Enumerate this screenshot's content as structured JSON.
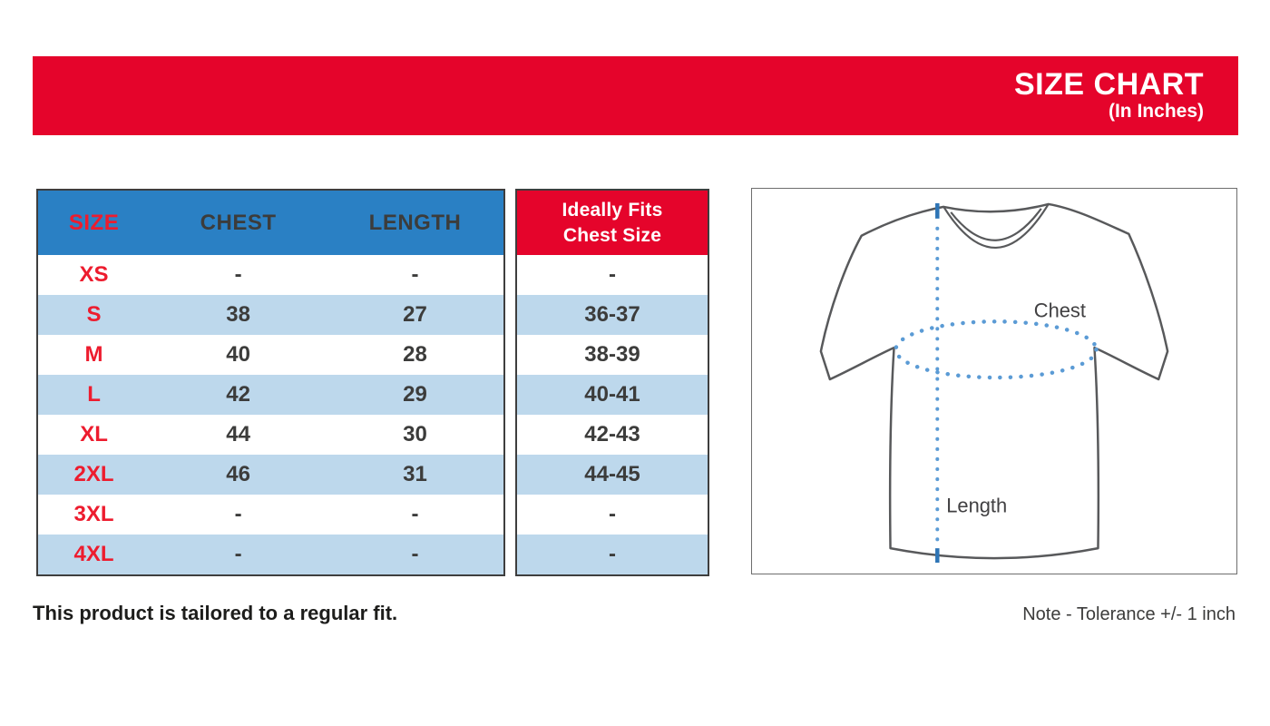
{
  "banner": {
    "title": "SIZE CHART",
    "subtitle": "(In Inches)"
  },
  "size_table": {
    "headers": [
      "SIZE",
      "CHEST",
      "LENGTH"
    ],
    "rows": [
      {
        "size": "XS",
        "chest": "-",
        "length": "-"
      },
      {
        "size": "S",
        "chest": "38",
        "length": "27"
      },
      {
        "size": "M",
        "chest": "40",
        "length": "28"
      },
      {
        "size": "L",
        "chest": "42",
        "length": "29"
      },
      {
        "size": "XL",
        "chest": "44",
        "length": "30"
      },
      {
        "size": "2XL",
        "chest": "46",
        "length": "31"
      },
      {
        "size": "3XL",
        "chest": "-",
        "length": "-"
      },
      {
        "size": "4XL",
        "chest": "-",
        "length": "-"
      }
    ]
  },
  "fit_table": {
    "header_line1": "Ideally Fits",
    "header_line2": "Chest Size",
    "rows": [
      "-",
      "36-37",
      "38-39",
      "40-41",
      "42-43",
      "44-45",
      "-",
      "-"
    ]
  },
  "diagram": {
    "chest_label": "Chest",
    "length_label": "Length"
  },
  "footer": {
    "fit_note": "This product is tailored to a regular fit.",
    "tolerance_note": "Note - Tolerance +/- 1 inch"
  },
  "colors": {
    "red": "#E5042B",
    "size-label-red": "#ED1C2E",
    "header-blue": "#2A80C4",
    "row-stripe-blue": "#BDD8EC",
    "value-text": "#3C3C3B",
    "dotted-line-blue": "#5B9BD5",
    "solid-dash-blue": "#2E75B6",
    "shirt-outline": "#58595B"
  },
  "chart_data": {
    "type": "table",
    "title": "SIZE CHART (In Inches)",
    "columns": [
      "SIZE",
      "CHEST",
      "LENGTH",
      "Ideally Fits Chest Size"
    ],
    "rows": [
      [
        "XS",
        "-",
        "-",
        "-"
      ],
      [
        "S",
        "38",
        "27",
        "36-37"
      ],
      [
        "M",
        "40",
        "28",
        "38-39"
      ],
      [
        "L",
        "42",
        "29",
        "40-41"
      ],
      [
        "XL",
        "44",
        "30",
        "42-43"
      ],
      [
        "2XL",
        "46",
        "31",
        "44-45"
      ],
      [
        "3XL",
        "-",
        "-",
        "-"
      ],
      [
        "4XL",
        "-",
        "-",
        "-"
      ]
    ]
  }
}
